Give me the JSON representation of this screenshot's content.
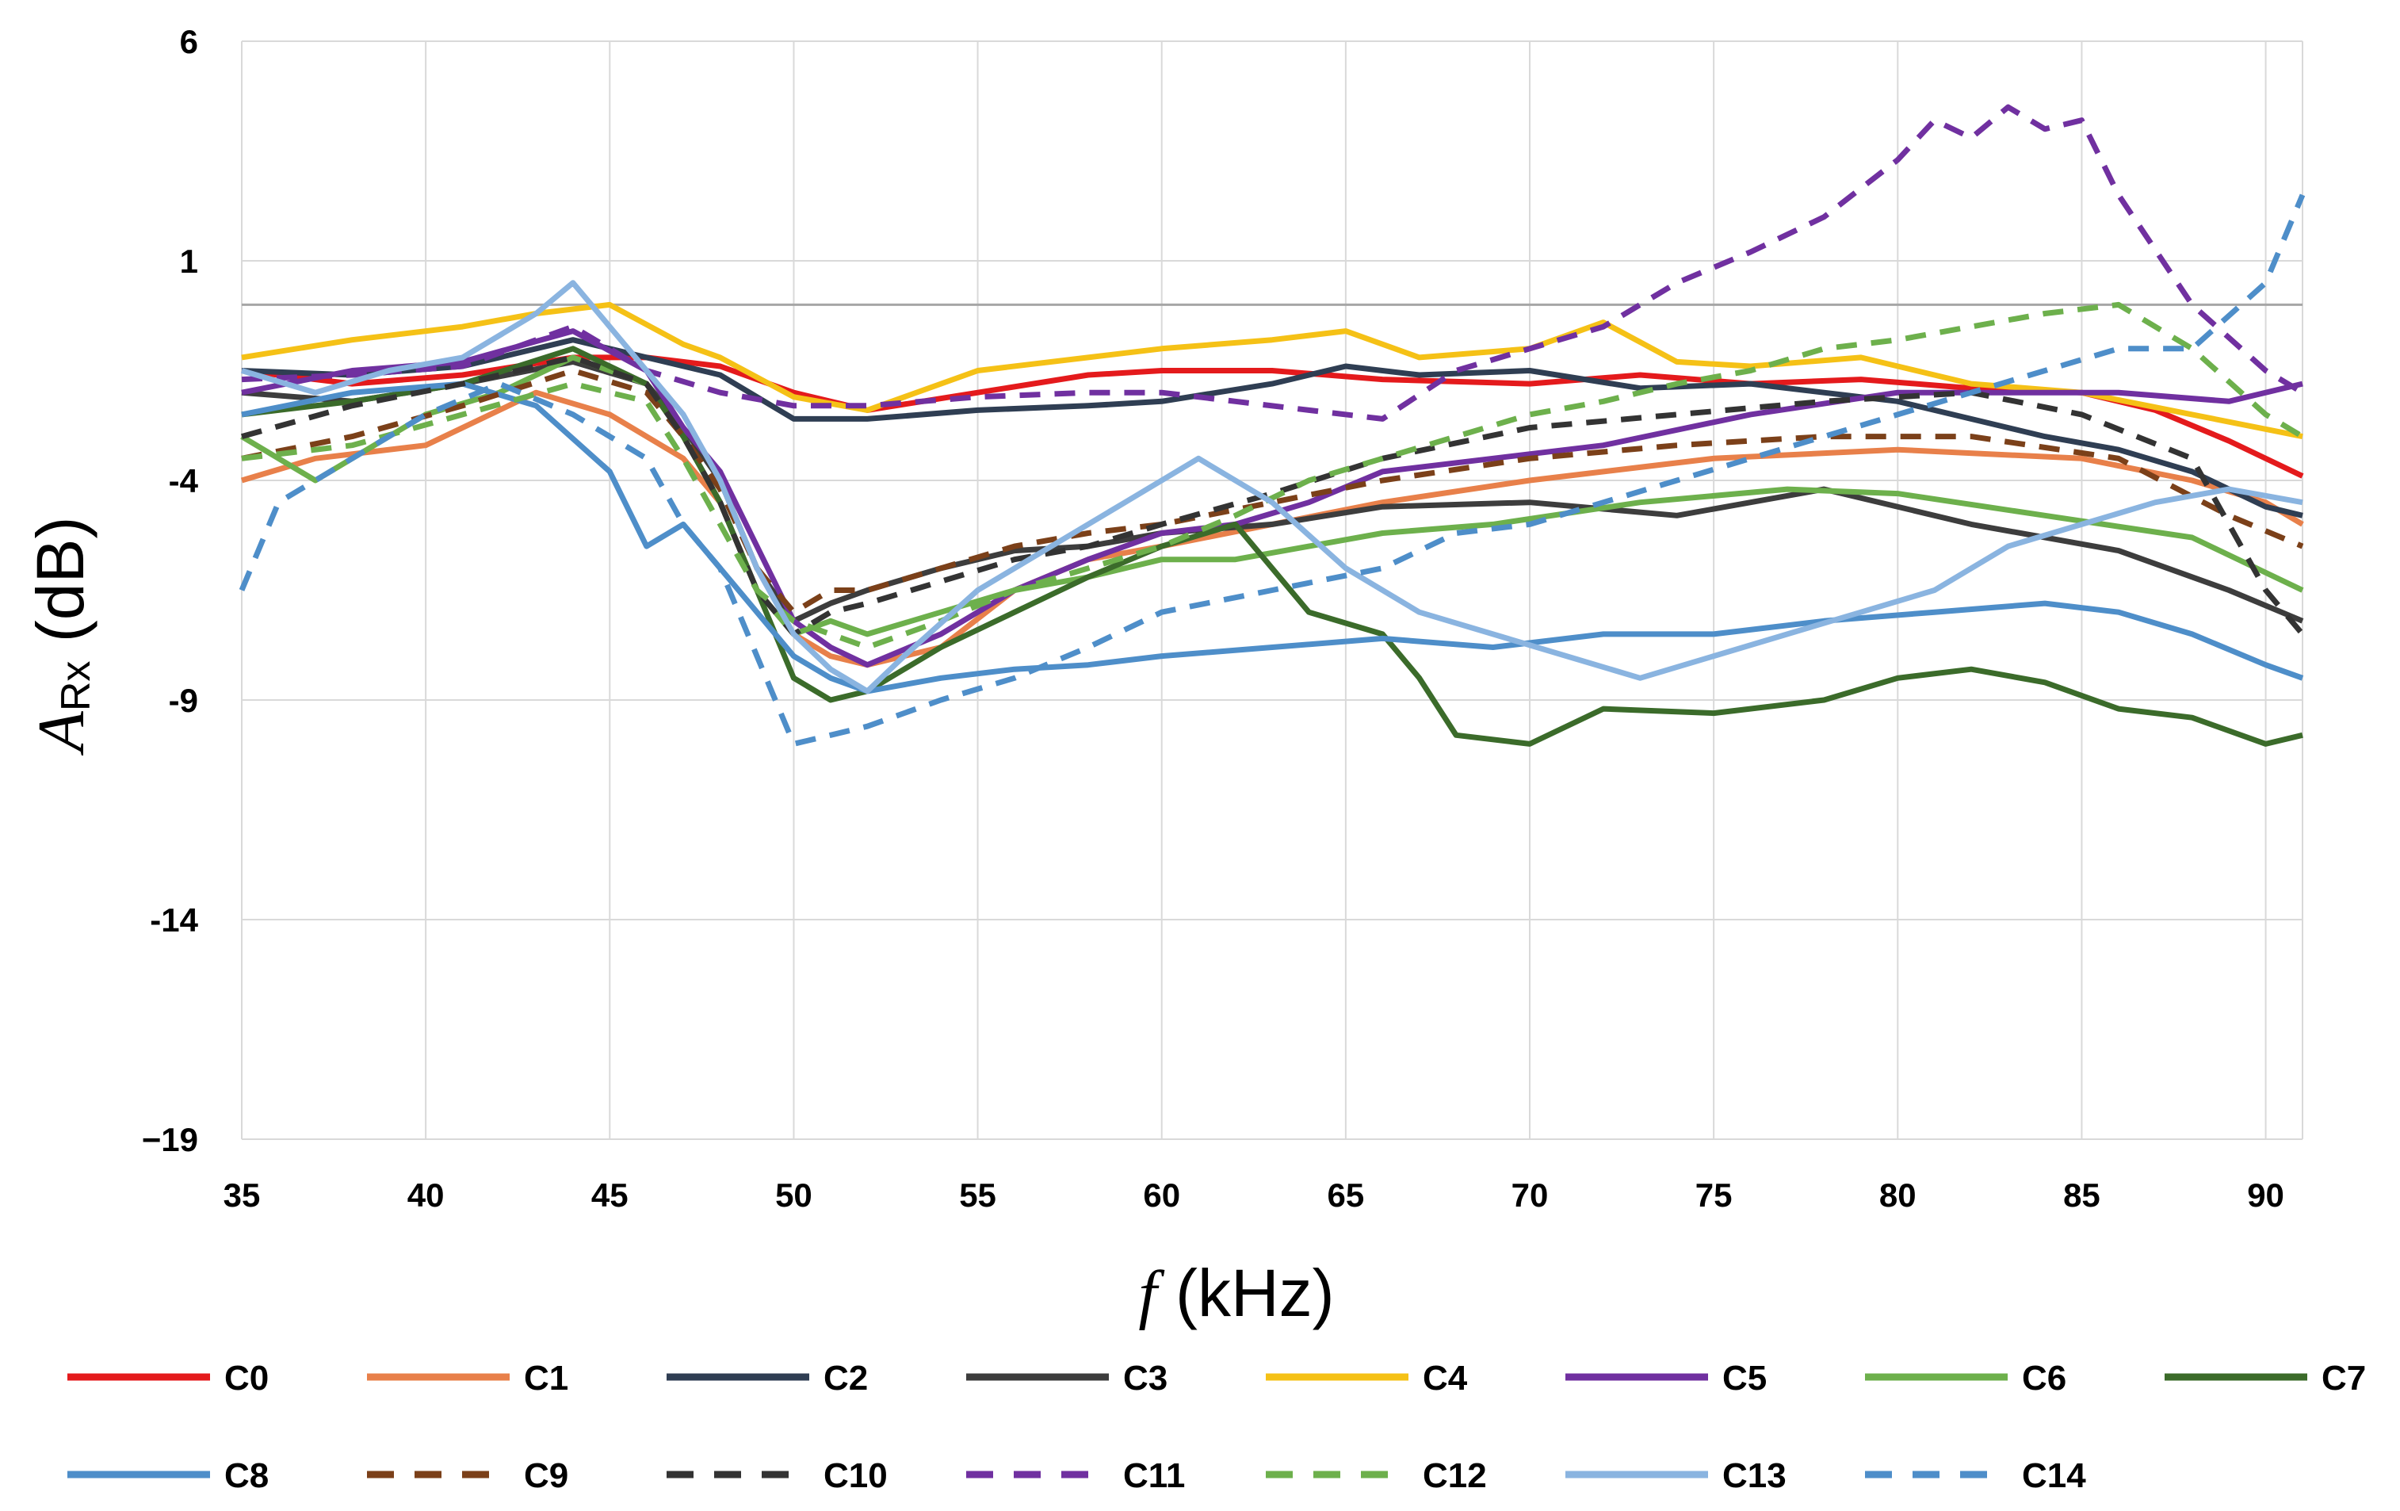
{
  "chart_data": {
    "type": "line",
    "title": "",
    "xlabel_italic": "f",
    "xlabel_rest": " (kHz)",
    "ylabel_main": "A",
    "ylabel_sub": "Rx",
    "ylabel_rest": " (dB)",
    "xlim": [
      35,
      91
    ],
    "ylim": [
      -19,
      6
    ],
    "xticks": [
      35,
      40,
      45,
      50,
      55,
      60,
      65,
      70,
      75,
      80,
      85,
      90
    ],
    "yticks": [
      6,
      1,
      -4,
      -9,
      -14,
      -19
    ],
    "ytick_labels": [
      "6",
      "1",
      "-4",
      "-9",
      "-14",
      "−19"
    ],
    "reference_line_y": 0,
    "grid": true,
    "legend_position": "bottom",
    "series": [
      {
        "name": "C0",
        "color": "#e41a1c",
        "dash": false,
        "x": [
          35,
          38,
          41,
          44,
          46,
          48,
          50,
          52,
          55,
          58,
          60,
          63,
          66,
          70,
          73,
          76,
          79,
          82,
          85,
          87,
          89,
          91
        ],
        "y": [
          -1.5,
          -1.8,
          -1.6,
          -1.2,
          -1.2,
          -1.4,
          -2.0,
          -2.4,
          -2.0,
          -1.6,
          -1.5,
          -1.5,
          -1.7,
          -1.8,
          -1.6,
          -1.8,
          -1.7,
          -1.9,
          -2.0,
          -2.4,
          -3.1,
          -3.9
        ]
      },
      {
        "name": "C1",
        "color": "#e8804a",
        "dash": false,
        "x": [
          35,
          37,
          40,
          43,
          45,
          47,
          48,
          49,
          50,
          51,
          52,
          54,
          56,
          58,
          60,
          63,
          66,
          70,
          75,
          80,
          85,
          88,
          90,
          91
        ],
        "y": [
          -4.0,
          -3.5,
          -3.2,
          -2.0,
          -2.5,
          -3.5,
          -4.5,
          -6.5,
          -7.5,
          -8.0,
          -8.2,
          -7.8,
          -6.5,
          -5.8,
          -5.5,
          -5.0,
          -4.5,
          -4.0,
          -3.5,
          -3.3,
          -3.5,
          -4.0,
          -4.5,
          -5.0
        ]
      },
      {
        "name": "C2",
        "color": "#2f3e53",
        "dash": false,
        "x": [
          35,
          38,
          41,
          44,
          46,
          48,
          50,
          52,
          55,
          58,
          60,
          63,
          65,
          67,
          70,
          73,
          76,
          80,
          84,
          86,
          88,
          90,
          91
        ],
        "y": [
          -1.5,
          -1.6,
          -1.4,
          -0.8,
          -1.2,
          -1.6,
          -2.6,
          -2.6,
          -2.4,
          -2.3,
          -2.2,
          -1.8,
          -1.4,
          -1.6,
          -1.5,
          -1.9,
          -1.8,
          -2.2,
          -3.0,
          -3.3,
          -3.8,
          -4.6,
          -4.8
        ]
      },
      {
        "name": "C3",
        "color": "#3d3d3d",
        "dash": false,
        "x": [
          35,
          38,
          41,
          44,
          46,
          47,
          48,
          49,
          50,
          51,
          52,
          54,
          56,
          58,
          60,
          63,
          66,
          70,
          74,
          78,
          82,
          86,
          89,
          91
        ],
        "y": [
          -2.0,
          -2.2,
          -1.8,
          -1.3,
          -1.8,
          -2.8,
          -4.0,
          -6.0,
          -7.2,
          -6.8,
          -6.5,
          -6.0,
          -5.6,
          -5.5,
          -5.2,
          -5.0,
          -4.6,
          -4.5,
          -4.8,
          -4.2,
          -5.0,
          -5.6,
          -6.5,
          -7.2
        ]
      },
      {
        "name": "C4",
        "color": "#f5c116",
        "dash": false,
        "x": [
          35,
          38,
          41,
          43,
          45,
          47,
          48,
          50,
          52,
          55,
          58,
          60,
          63,
          65,
          67,
          70,
          72,
          74,
          76,
          79,
          82,
          85,
          88,
          91
        ],
        "y": [
          -1.2,
          -0.8,
          -0.5,
          -0.2,
          0.0,
          -0.9,
          -1.2,
          -2.1,
          -2.4,
          -1.5,
          -1.2,
          -1.0,
          -0.8,
          -0.6,
          -1.2,
          -1.0,
          -0.4,
          -1.3,
          -1.4,
          -1.2,
          -1.8,
          -2.0,
          -2.5,
          -3.0
        ]
      },
      {
        "name": "C5",
        "color": "#7030a0",
        "dash": false,
        "x": [
          35,
          38,
          41,
          44,
          46,
          47,
          48,
          49,
          50,
          51,
          52,
          54,
          56,
          58,
          60,
          62,
          64,
          66,
          69,
          72,
          76,
          80,
          83,
          86,
          89,
          91
        ],
        "y": [
          -2.0,
          -1.5,
          -1.3,
          -0.6,
          -1.5,
          -2.8,
          -3.8,
          -5.5,
          -7.2,
          -7.8,
          -8.2,
          -7.5,
          -6.5,
          -5.8,
          -5.2,
          -5.0,
          -4.5,
          -3.8,
          -3.5,
          -3.2,
          -2.5,
          -2.0,
          -2.0,
          -2.0,
          -2.2,
          -1.8
        ]
      },
      {
        "name": "C6",
        "color": "#6db04c",
        "dash": false,
        "x": [
          35,
          37,
          40,
          42,
          44,
          46,
          47,
          48,
          49,
          50,
          51,
          52,
          54,
          56,
          58,
          60,
          62,
          64,
          66,
          69,
          73,
          77,
          80,
          84,
          88,
          91
        ],
        "y": [
          -3.0,
          -4.0,
          -2.5,
          -2.0,
          -1.2,
          -1.8,
          -3.0,
          -4.5,
          -6.5,
          -7.5,
          -7.2,
          -7.5,
          -7.0,
          -6.5,
          -6.2,
          -5.8,
          -5.8,
          -5.5,
          -5.2,
          -5.0,
          -4.5,
          -4.2,
          -4.3,
          -4.8,
          -5.3,
          -6.5
        ]
      },
      {
        "name": "C7",
        "color": "#3b6b2a",
        "dash": false,
        "x": [
          35,
          38,
          41,
          44,
          46,
          47,
          48,
          49,
          50,
          51,
          52,
          54,
          56,
          58,
          60,
          62,
          63,
          64,
          66,
          67,
          68,
          70,
          72,
          75,
          78,
          80,
          82,
          84,
          86,
          88,
          90,
          91
        ],
        "y": [
          -2.5,
          -2.2,
          -1.8,
          -1.0,
          -1.8,
          -3.0,
          -4.5,
          -6.5,
          -8.5,
          -9.0,
          -8.8,
          -7.8,
          -7.0,
          -6.2,
          -5.5,
          -5.0,
          -6.0,
          -7.0,
          -7.5,
          -8.5,
          -9.8,
          -10.0,
          -9.2,
          -9.3,
          -9.0,
          -8.5,
          -8.3,
          -8.6,
          -9.2,
          -9.4,
          -10.0,
          -9.8
        ]
      },
      {
        "name": "C8",
        "color": "#4e8ec9",
        "dash": false,
        "x": [
          35,
          38,
          41,
          43,
          45,
          46,
          47,
          48,
          49,
          50,
          51,
          52,
          54,
          56,
          58,
          60,
          63,
          66,
          69,
          72,
          75,
          78,
          81,
          84,
          86,
          88,
          90,
          91
        ],
        "y": [
          -2.5,
          -2.0,
          -1.8,
          -2.3,
          -3.8,
          -5.5,
          -5.0,
          -6.0,
          -7.0,
          -8.0,
          -8.5,
          -8.8,
          -8.5,
          -8.3,
          -8.2,
          -8.0,
          -7.8,
          -7.6,
          -7.8,
          -7.5,
          -7.5,
          -7.2,
          -7.0,
          -6.8,
          -7.0,
          -7.5,
          -8.2,
          -8.5
        ]
      },
      {
        "name": "C9",
        "color": "#7b4019",
        "dash": true,
        "x": [
          35,
          38,
          41,
          44,
          46,
          47,
          48,
          49,
          50,
          51,
          52,
          54,
          56,
          58,
          60,
          63,
          66,
          70,
          74,
          78,
          82,
          86,
          89,
          91
        ],
        "y": [
          -3.5,
          -3.0,
          -2.3,
          -1.5,
          -2.0,
          -3.0,
          -4.2,
          -6.0,
          -7.0,
          -6.5,
          -6.5,
          -6.0,
          -5.5,
          -5.2,
          -5.0,
          -4.5,
          -4.0,
          -3.5,
          -3.2,
          -3.0,
          -3.0,
          -3.5,
          -4.8,
          -5.5
        ]
      },
      {
        "name": "C10",
        "color": "#333333",
        "dash": true,
        "x": [
          35,
          38,
          41,
          44,
          46,
          47,
          48,
          49,
          50,
          51,
          52,
          54,
          56,
          58,
          60,
          63,
          66,
          70,
          74,
          78,
          82,
          85,
          88,
          90,
          91
        ],
        "y": [
          -3.0,
          -2.3,
          -1.8,
          -1.2,
          -1.8,
          -3.0,
          -4.5,
          -6.5,
          -7.5,
          -7.0,
          -6.8,
          -6.3,
          -5.8,
          -5.5,
          -5.0,
          -4.3,
          -3.5,
          -2.8,
          -2.5,
          -2.2,
          -2.0,
          -2.5,
          -3.5,
          -6.5,
          -7.5
        ]
      },
      {
        "name": "C11",
        "color": "#7030a0",
        "dash": true,
        "x": [
          35,
          38,
          41,
          44,
          46,
          48,
          50,
          52,
          55,
          58,
          60,
          62,
          64,
          66,
          68,
          70,
          72,
          74,
          76,
          78,
          80,
          81,
          82,
          83,
          84,
          85,
          86,
          88,
          90,
          91
        ],
        "y": [
          -1.7,
          -1.6,
          -1.4,
          -0.5,
          -1.5,
          -2.0,
          -2.3,
          -2.3,
          -2.1,
          -2.0,
          -2.0,
          -2.2,
          -2.4,
          -2.6,
          -1.5,
          -1.0,
          -0.5,
          0.5,
          1.2,
          2.0,
          3.3,
          4.2,
          3.8,
          4.5,
          4.0,
          4.2,
          2.5,
          0.0,
          -1.5,
          -2.0
        ]
      },
      {
        "name": "C12",
        "color": "#6db04c",
        "dash": true,
        "x": [
          35,
          38,
          41,
          44,
          46,
          47,
          48,
          49,
          50,
          51,
          52,
          54,
          56,
          58,
          60,
          62,
          64,
          66,
          68,
          70,
          72,
          74,
          76,
          78,
          80,
          82,
          84,
          86,
          88,
          90,
          91
        ],
        "y": [
          -3.5,
          -3.2,
          -2.5,
          -1.8,
          -2.2,
          -3.5,
          -5.0,
          -6.5,
          -7.2,
          -7.5,
          -7.8,
          -7.2,
          -6.5,
          -6.0,
          -5.5,
          -4.8,
          -4.0,
          -3.5,
          -3.0,
          -2.5,
          -2.2,
          -1.8,
          -1.5,
          -1.0,
          -0.8,
          -0.5,
          -0.2,
          0.0,
          -1.0,
          -2.5,
          -3.0
        ]
      },
      {
        "name": "C13",
        "color": "#8ab4e0",
        "dash": false,
        "x": [
          35,
          37,
          39,
          41,
          43,
          44,
          45,
          46,
          47,
          48,
          49,
          50,
          51,
          52,
          53,
          55,
          57,
          59,
          61,
          63,
          65,
          67,
          69,
          71,
          73,
          75,
          77,
          79,
          81,
          83,
          85,
          87,
          89,
          91
        ],
        "y": [
          -1.5,
          -2.0,
          -1.5,
          -1.2,
          -0.2,
          0.5,
          -0.5,
          -1.5,
          -2.5,
          -4.0,
          -6.0,
          -7.5,
          -8.3,
          -8.8,
          -8.0,
          -6.5,
          -5.5,
          -4.5,
          -3.5,
          -4.5,
          -6.0,
          -7.0,
          -7.5,
          -8.0,
          -8.5,
          -8.0,
          -7.5,
          -7.0,
          -6.5,
          -5.5,
          -5.0,
          -4.5,
          -4.2,
          -4.5
        ]
      },
      {
        "name": "C14",
        "color": "#4e8ec9",
        "dash": true,
        "x": [
          35,
          36,
          38,
          40,
          42,
          44,
          46,
          47,
          48,
          49,
          50,
          51,
          52,
          54,
          56,
          58,
          60,
          63,
          66,
          68,
          70,
          72,
          74,
          76,
          78,
          80,
          82,
          84,
          86,
          88,
          90,
          91
        ],
        "y": [
          -6.5,
          -4.5,
          -3.5,
          -2.5,
          -1.8,
          -2.5,
          -3.5,
          -5.0,
          -6.0,
          -8.0,
          -10.0,
          -9.8,
          -9.6,
          -9.0,
          -8.5,
          -7.8,
          -7.0,
          -6.5,
          -6.0,
          -5.2,
          -5.0,
          -4.5,
          -4.0,
          -3.5,
          -3.0,
          -2.5,
          -2.0,
          -1.5,
          -1.0,
          -1.0,
          0.5,
          2.5
        ]
      }
    ]
  }
}
